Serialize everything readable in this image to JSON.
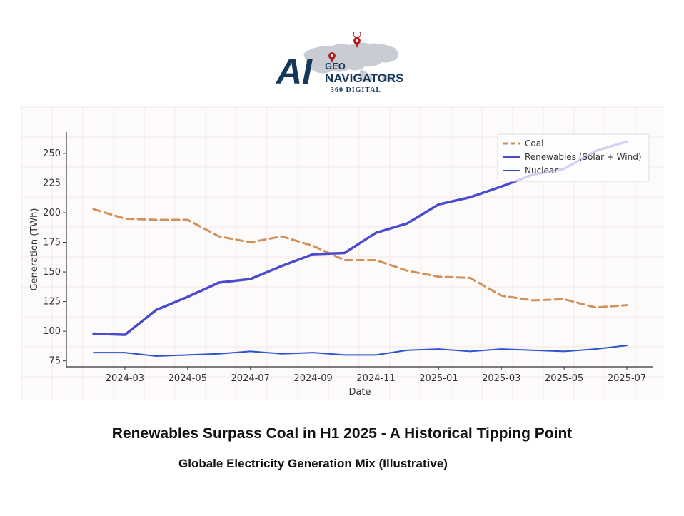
{
  "logo": {
    "mark_text": "AI",
    "line1": "GEO",
    "line2": "NAVIGATORS",
    "line3": "360 DIGITAL"
  },
  "headline": "Renewables Surpass Coal in H1 2025 - A Historical Tipping Point",
  "subheadline": "Globale Electricity Generation Mix (Illustrative)",
  "chart_data": {
    "type": "line",
    "title": "",
    "xlabel": "Date",
    "ylabel": "Generation (TWh)",
    "x": [
      "2024-02",
      "2024-03",
      "2024-04",
      "2024-05",
      "2024-06",
      "2024-07",
      "2024-08",
      "2024-09",
      "2024-10",
      "2024-11",
      "2024-12",
      "2025-01",
      "2025-02",
      "2025-03",
      "2025-04",
      "2025-05",
      "2025-06",
      "2025-07"
    ],
    "x_ticks": [
      "2024-03",
      "2024-05",
      "2024-07",
      "2024-09",
      "2024-11",
      "2025-01",
      "2025-03",
      "2025-05",
      "2025-07"
    ],
    "y_ticks": [
      75,
      100,
      125,
      150,
      175,
      200,
      225,
      250
    ],
    "ylim": [
      70,
      268
    ],
    "grid": false,
    "legend_position": "top-right",
    "series": [
      {
        "name": "Coal",
        "style": "dashed",
        "color": "#d2915a",
        "values": [
          203,
          195,
          194,
          194,
          180,
          175,
          180,
          172,
          160,
          160,
          151,
          146,
          145,
          130,
          126,
          127,
          120,
          122
        ]
      },
      {
        "name": "Renewables (Solar + Wind)",
        "style": "solid-thick",
        "color": "#4b4bd0",
        "values": [
          98,
          97,
          118,
          129,
          141,
          144,
          155,
          165,
          166,
          183,
          191,
          207,
          213,
          222,
          232,
          237,
          252,
          260
        ]
      },
      {
        "name": "Nuclear",
        "style": "solid",
        "color": "#2a55cc",
        "values": [
          82,
          82,
          79,
          80,
          81,
          83,
          81,
          82,
          80,
          80,
          84,
          85,
          83,
          85,
          84,
          83,
          85,
          88
        ]
      }
    ]
  }
}
